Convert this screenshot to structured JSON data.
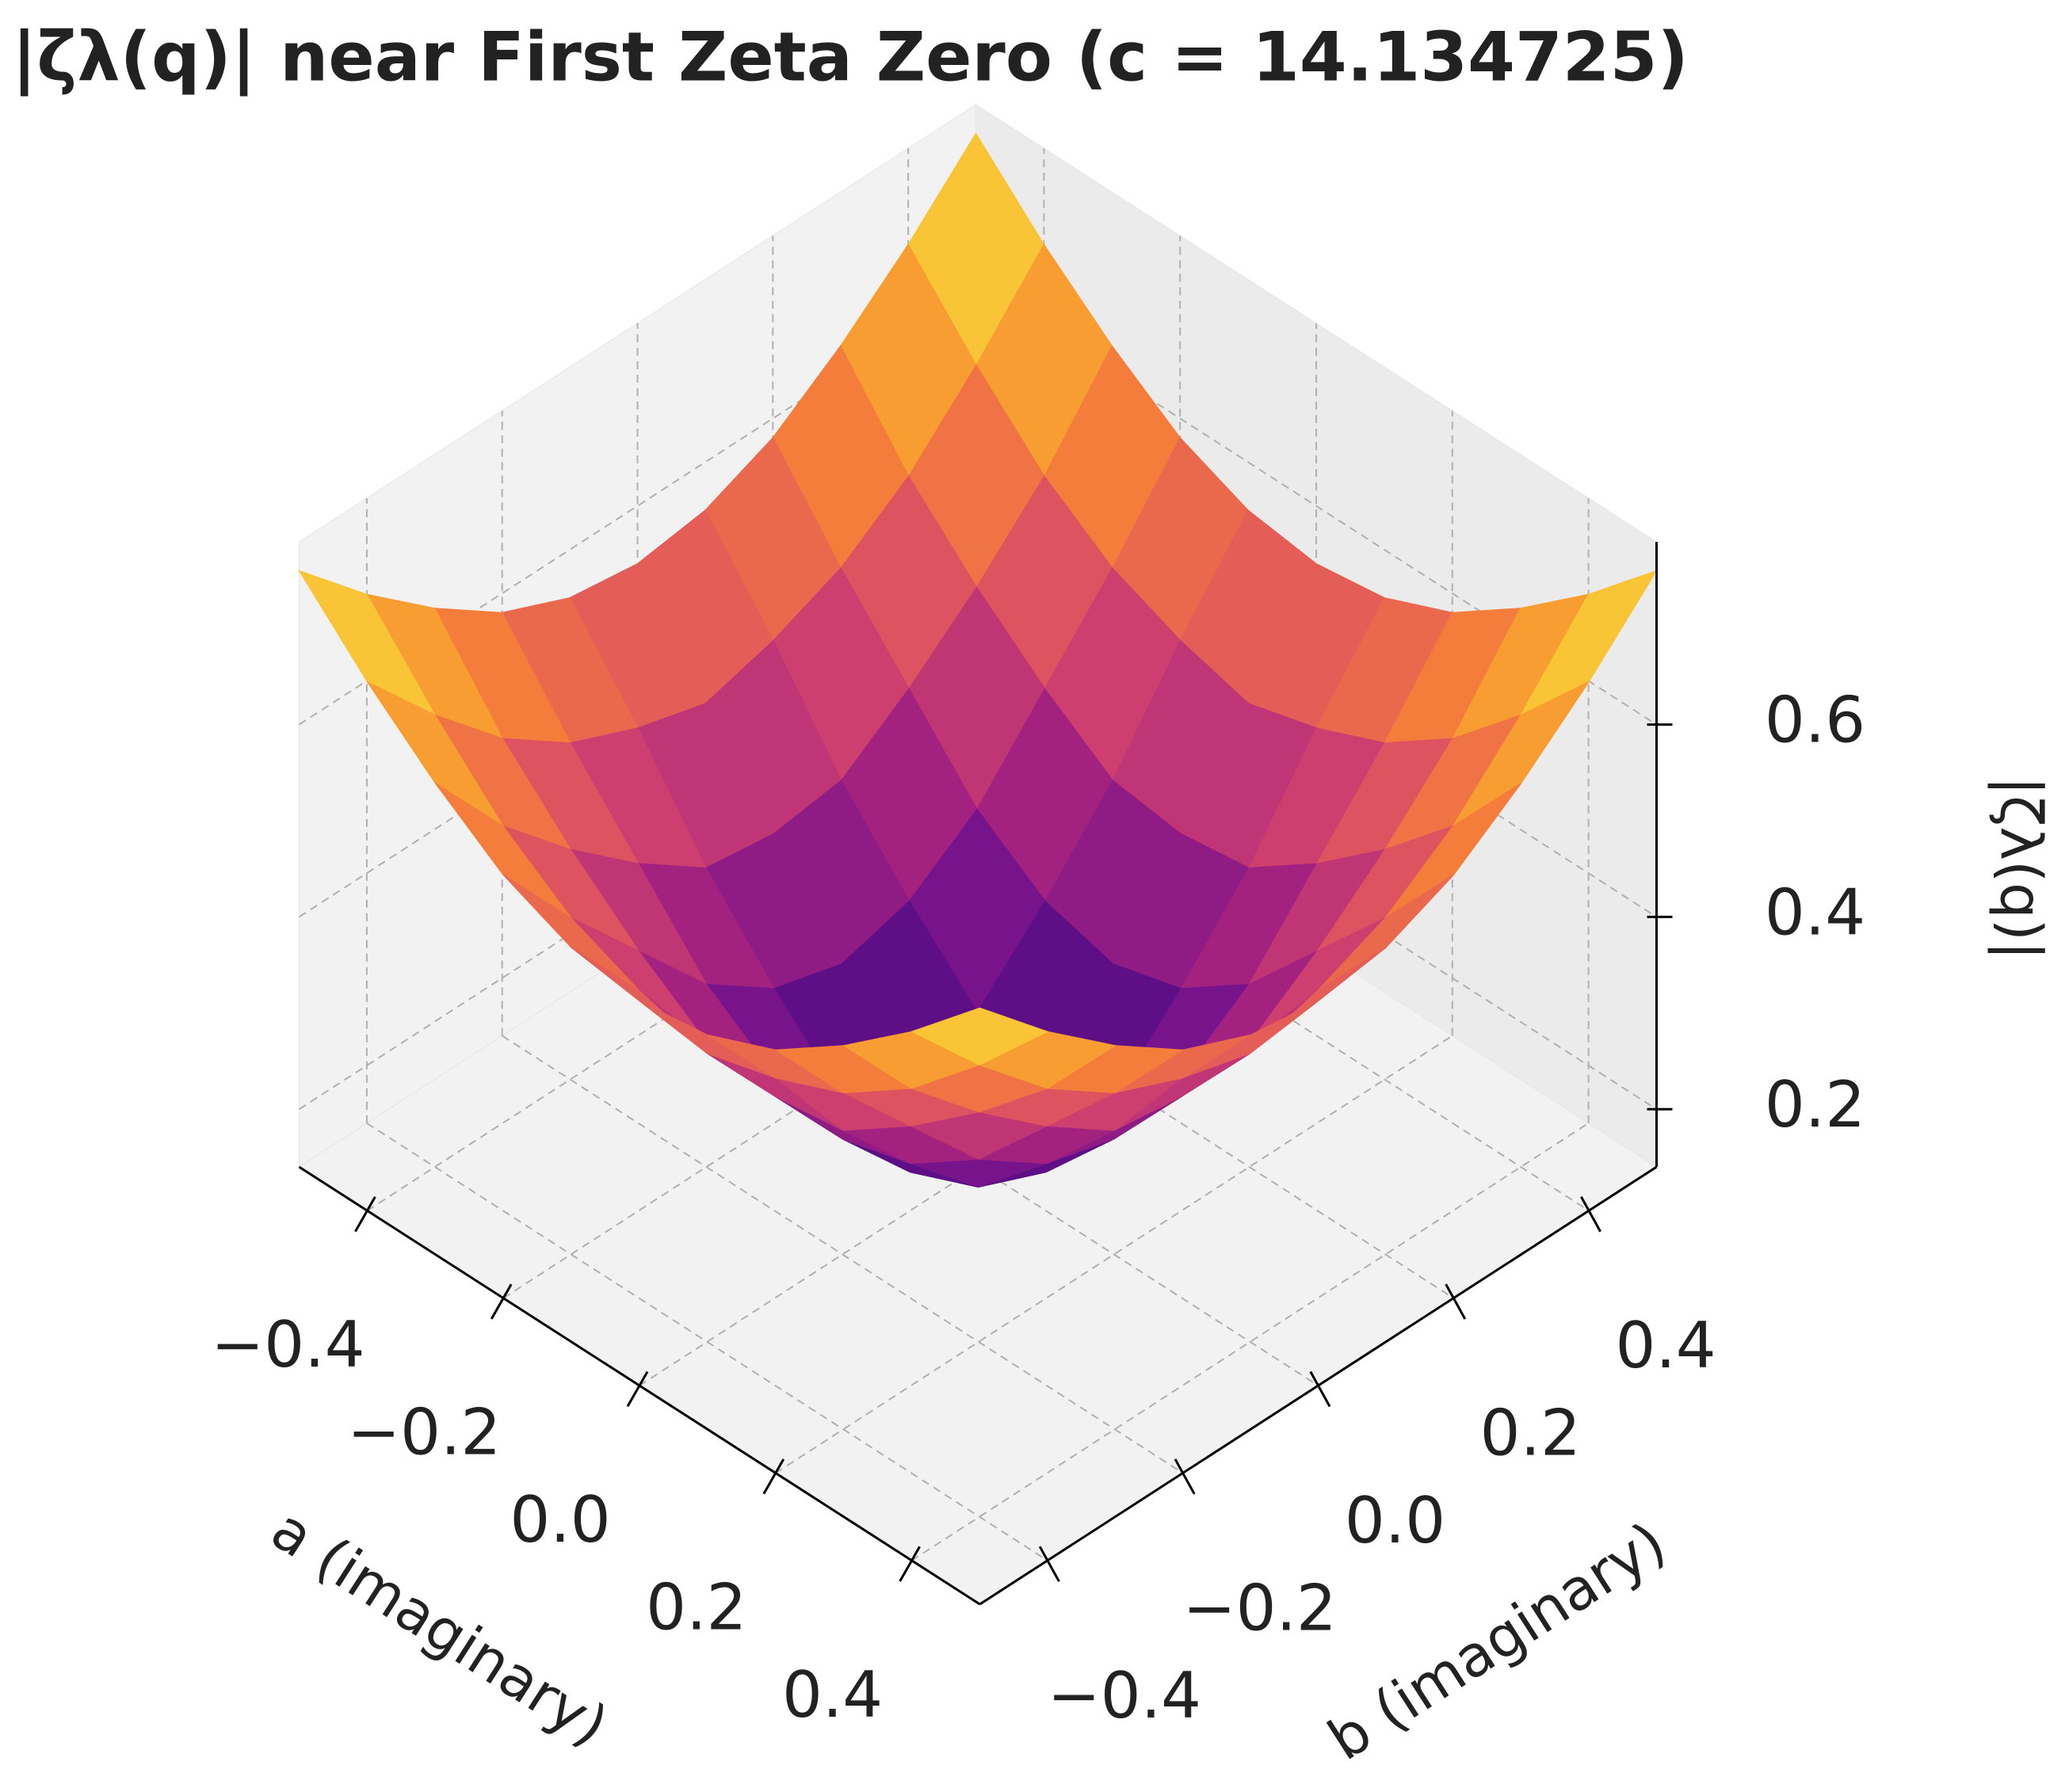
{
  "chart_data": {
    "type": "surface",
    "title": "|ζλ(q)| near First Zeta Zero (c = 14.134725)",
    "xlabel": "a (imaginary)",
    "ylabel": "b (imaginary)",
    "zlabel": "|ζλ(q)|",
    "colormap": "plasma",
    "grid": true,
    "x": [
      -0.5,
      -0.4,
      -0.3,
      -0.2,
      -0.1,
      0,
      0.1,
      0.2,
      0.3,
      0.4,
      0.5
    ],
    "y": [
      -0.5,
      -0.4,
      -0.3,
      -0.2,
      -0.1,
      0,
      0.1,
      0.2,
      0.3,
      0.4,
      0.5
    ],
    "z": [
      [
        0.76,
        0.69,
        0.63,
        0.58,
        0.55,
        0.54,
        0.55,
        0.58,
        0.63,
        0.69,
        0.76
      ],
      [
        0.69,
        0.61,
        0.54,
        0.49,
        0.46,
        0.44,
        0.46,
        0.49,
        0.54,
        0.61,
        0.69
      ],
      [
        0.63,
        0.54,
        0.47,
        0.41,
        0.36,
        0.35,
        0.36,
        0.41,
        0.47,
        0.54,
        0.63
      ],
      [
        0.58,
        0.49,
        0.41,
        0.33,
        0.28,
        0.26,
        0.28,
        0.33,
        0.41,
        0.49,
        0.58
      ],
      [
        0.55,
        0.46,
        0.36,
        0.28,
        0.21,
        0.18,
        0.21,
        0.28,
        0.36,
        0.46,
        0.55
      ],
      [
        0.54,
        0.44,
        0.35,
        0.26,
        0.18,
        0.15,
        0.18,
        0.26,
        0.35,
        0.44,
        0.54
      ],
      [
        0.55,
        0.46,
        0.36,
        0.28,
        0.21,
        0.18,
        0.21,
        0.28,
        0.36,
        0.46,
        0.55
      ],
      [
        0.58,
        0.49,
        0.41,
        0.33,
        0.28,
        0.26,
        0.28,
        0.33,
        0.41,
        0.49,
        0.58
      ],
      [
        0.63,
        0.54,
        0.47,
        0.41,
        0.36,
        0.35,
        0.36,
        0.41,
        0.47,
        0.54,
        0.63
      ],
      [
        0.69,
        0.61,
        0.54,
        0.49,
        0.46,
        0.44,
        0.46,
        0.49,
        0.54,
        0.61,
        0.69
      ],
      [
        0.76,
        0.69,
        0.63,
        0.58,
        0.55,
        0.54,
        0.55,
        0.58,
        0.63,
        0.69,
        0.76
      ]
    ],
    "xlim": [
      -0.5,
      0.5
    ],
    "ylim": [
      -0.5,
      0.5
    ],
    "zlim": [
      0.14,
      0.79
    ],
    "xticks": [
      {
        "value": -0.4,
        "label": "−0.4"
      },
      {
        "value": -0.2,
        "label": "−0.2"
      },
      {
        "value": 0,
        "label": "0.0"
      },
      0.2,
      0.4
    ],
    "yticks": [
      {
        "value": -0.4,
        "label": "−0.4"
      },
      {
        "value": -0.2,
        "label": "−0.2"
      },
      {
        "value": 0,
        "label": "0.0"
      },
      0.2,
      0.4
    ],
    "zticks": [
      0.2,
      0.4,
      0.6
    ]
  }
}
